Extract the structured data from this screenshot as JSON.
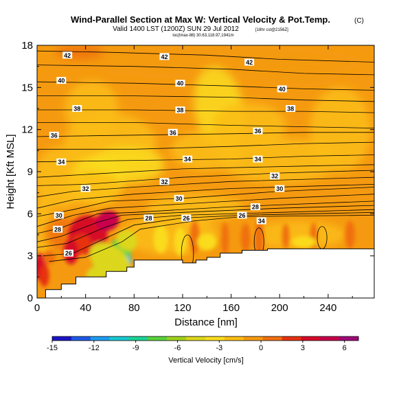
{
  "chart_data": {
    "type": "heatmap",
    "title": "Wind-Parallel Section at Max W: Vertical Velocity & Pot.Temp.",
    "title_badge": "(C)",
    "subtitle": "Valid 1400 LST (1200Z) SUN 29 Jul 2012",
    "subtitle_note": "[18hr cst@2156Z]",
    "subtitle_small": "loc(lmax-88) 30.63,118.97,1941m",
    "xlabel": "Distance [nm]",
    "ylabel": "Height [Kft MSL]",
    "xlim": [
      0,
      278
    ],
    "ylim": [
      0,
      18
    ],
    "x_ticks": [
      "0",
      "40",
      "80",
      "120",
      "160",
      "200",
      "240"
    ],
    "x_tick_values": [
      0,
      40,
      80,
      120,
      160,
      200,
      240
    ],
    "y_ticks": [
      "0",
      "3",
      "6",
      "9",
      "12",
      "15",
      "18"
    ],
    "y_tick_values": [
      0,
      3,
      6,
      9,
      12,
      15,
      18
    ],
    "colorbar": {
      "label": "Vertical Velocity [cm/s]",
      "tick_labels": [
        "-15",
        "-12",
        "-9",
        "-6",
        "-3",
        "0",
        "3",
        "6"
      ],
      "tick_values": [
        -15,
        -12,
        -9,
        -6,
        -3,
        0,
        3,
        6
      ],
      "min": -15,
      "max": 7,
      "colors": [
        "#1a14c8",
        "#1e5ae6",
        "#1e9cf0",
        "#18c8d2",
        "#1ed296",
        "#5ad23c",
        "#a0d21e",
        "#dcd71e",
        "#fadc1e",
        "#fbbd14",
        "#f59a10",
        "#f07010",
        "#e6320f",
        "#d70a28",
        "#c8004b",
        "#a00a78"
      ]
    },
    "field_base_color": "#f59a10",
    "theta_contours": {
      "levels": [
        26,
        28,
        30,
        32,
        34,
        36,
        38,
        40,
        42
      ],
      "label_texts": [
        "26",
        "28",
        "30",
        "32",
        "34",
        "36",
        "38",
        "40",
        "42"
      ],
      "labels": [
        {
          "text": "42",
          "x": 25,
          "y": 17.3
        },
        {
          "text": "42",
          "x": 105,
          "y": 17.2
        },
        {
          "text": "42",
          "x": 175,
          "y": 16.8
        },
        {
          "text": "40",
          "x": 20,
          "y": 15.5
        },
        {
          "text": "40",
          "x": 118,
          "y": 15.3
        },
        {
          "text": "40",
          "x": 202,
          "y": 14.9
        },
        {
          "text": "38",
          "x": 33,
          "y": 13.5
        },
        {
          "text": "38",
          "x": 118,
          "y": 13.4
        },
        {
          "text": "38",
          "x": 209,
          "y": 13.5
        },
        {
          "text": "36",
          "x": 14,
          "y": 11.6
        },
        {
          "text": "36",
          "x": 112,
          "y": 11.8
        },
        {
          "text": "36",
          "x": 182,
          "y": 11.9
        },
        {
          "text": "34",
          "x": 20,
          "y": 9.7
        },
        {
          "text": "34",
          "x": 124,
          "y": 9.9
        },
        {
          "text": "34",
          "x": 182,
          "y": 9.9
        },
        {
          "text": "32",
          "x": 40,
          "y": 7.8
        },
        {
          "text": "32",
          "x": 105,
          "y": 8.3
        },
        {
          "text": "32",
          "x": 196,
          "y": 8.7
        },
        {
          "text": "30",
          "x": 18,
          "y": 5.9
        },
        {
          "text": "30",
          "x": 117,
          "y": 7.1
        },
        {
          "text": "30",
          "x": 200,
          "y": 7.8
        },
        {
          "text": "28",
          "x": 17,
          "y": 4.9
        },
        {
          "text": "28",
          "x": 92,
          "y": 5.7
        },
        {
          "text": "28",
          "x": 180,
          "y": 6.5
        },
        {
          "text": "26",
          "x": 26,
          "y": 3.2
        },
        {
          "text": "26",
          "x": 123,
          "y": 5.7
        },
        {
          "text": "26",
          "x": 169,
          "y": 5.9
        },
        {
          "text": "34",
          "x": 185,
          "y": 5.5
        }
      ]
    },
    "terrain_steps": [
      [
        0,
        0.0
      ],
      [
        7,
        0.0
      ],
      [
        7,
        0.6
      ],
      [
        20,
        0.6
      ],
      [
        20,
        1.0
      ],
      [
        32,
        1.0
      ],
      [
        32,
        1.5
      ],
      [
        57,
        1.5
      ],
      [
        57,
        1.9
      ],
      [
        74,
        1.9
      ],
      [
        74,
        2.2
      ],
      [
        80,
        2.2
      ],
      [
        80,
        2.7
      ],
      [
        106,
        2.7
      ],
      [
        106,
        2.7
      ],
      [
        120,
        2.7
      ],
      [
        120,
        2.5
      ],
      [
        131,
        2.5
      ],
      [
        131,
        2.7
      ],
      [
        140,
        2.7
      ],
      [
        140,
        2.9
      ],
      [
        151,
        2.9
      ],
      [
        151,
        3.2
      ],
      [
        169,
        3.2
      ],
      [
        169,
        3.4
      ],
      [
        190,
        3.4
      ],
      [
        190,
        3.5
      ],
      [
        278,
        3.5
      ]
    ],
    "grid": false
  }
}
